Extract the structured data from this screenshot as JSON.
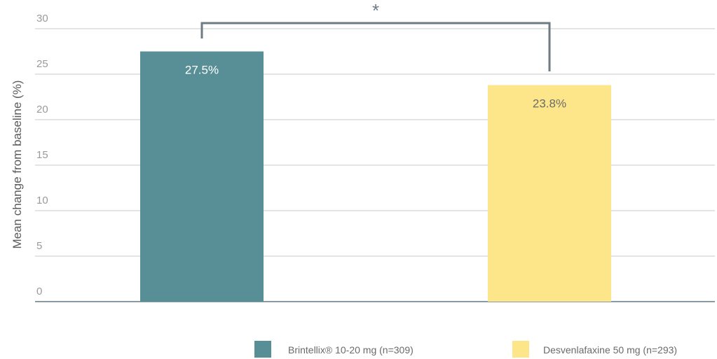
{
  "chart_data": {
    "type": "bar",
    "categories": [
      "Brintellix® 10-20 mg (n=309)",
      "Desvenlafaxine 50 mg (n=293)"
    ],
    "values": [
      27.5,
      23.8
    ],
    "value_labels": [
      "27.5%",
      "23.8%"
    ],
    "colors": [
      "#588f97",
      "#fde68a"
    ],
    "label_colors": [
      "#ffffff",
      "#6b6b6b"
    ],
    "title": "",
    "xlabel": "",
    "ylabel": "Mean change from baseline (%)",
    "ylim": [
      0,
      30
    ],
    "yticks": [
      0,
      5,
      10,
      15,
      20,
      25,
      30
    ],
    "grid": true,
    "legend": {
      "placement": "bottom-right",
      "entries": [
        "Brintellix® 10-20 mg (n=309)",
        "Desvenlafaxine 50 mg (n=293)"
      ]
    },
    "annotations": [
      {
        "type": "significance-bracket",
        "between": [
          0,
          1
        ],
        "text": "*"
      }
    ]
  },
  "colors": {
    "gridline": "#c9c9c9",
    "axis": "#8a9aa3",
    "bracket": "#6d7b85"
  }
}
